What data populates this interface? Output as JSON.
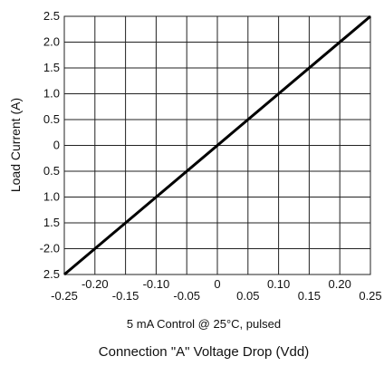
{
  "chart_data": {
    "type": "line",
    "xlabel": "Connection \"A\" Voltage Drop (Vdd)",
    "ylabel": "Load Current (A)",
    "note": "5 mA Control @ 25°C, pulsed",
    "xlim": [
      -0.25,
      0.25
    ],
    "ylim": [
      -2.5,
      2.5
    ],
    "grid": true,
    "x_ticks_lower": [
      "-0.25",
      "-0.15",
      "-0.05",
      "0.05",
      "0.15",
      "0.25"
    ],
    "x_ticks_upper": [
      "-0.20",
      "-0.10",
      "0",
      "0.10",
      "0.20"
    ],
    "y_ticks": [
      "2.5",
      "2.0",
      "1.5",
      "1.0",
      "0.5",
      "0",
      "0.5",
      "1.0",
      "1.5",
      "-2.0",
      "2.5"
    ],
    "series": [
      {
        "x": [
          -0.25,
          0.25
        ],
        "y": [
          -2.5,
          2.5
        ]
      }
    ],
    "colors": {
      "line": "#000000",
      "grid": "#222222"
    }
  }
}
